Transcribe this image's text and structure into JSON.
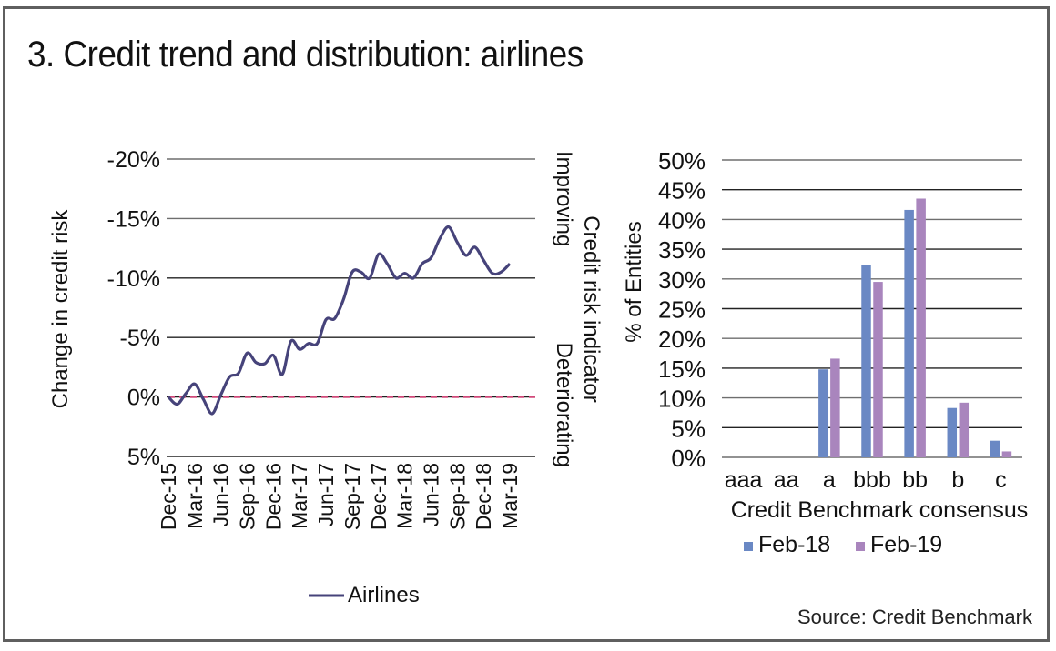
{
  "title": "3. Credit trend and distribution: airlines",
  "source": "Source: Credit Benchmark",
  "colors": {
    "airlines_line": "#46437a",
    "zero_reference": "#d14a7a",
    "feb18": "#6a88c4",
    "feb19": "#a985bd",
    "gridline": "#6e6e6e",
    "frame": "#5f5f5f"
  },
  "chart_data": [
    {
      "type": "line",
      "title": "",
      "xlabel": "",
      "ylabel": "Change in credit risk",
      "right_label": "Credit risk indicator",
      "right_annotations": {
        "top": "Improving",
        "bottom": "Deteriorating"
      },
      "y_inverted": true,
      "ylim": [
        -20,
        5
      ],
      "yticks": [
        -20,
        -15,
        -10,
        -5,
        0,
        5
      ],
      "ytick_labels": [
        "-20%",
        "-15%",
        "-10%",
        "-5%",
        "0%",
        "5%"
      ],
      "x_tick_labels": [
        "Dec-15",
        "Mar-16",
        "Jun-16",
        "Sep-16",
        "Dec-16",
        "Mar-17",
        "Jun-17",
        "Sep-17",
        "Dec-17",
        "Mar-18",
        "Jun-18",
        "Sep-18",
        "Dec-18",
        "Mar-19"
      ],
      "x_months_range": [
        0,
        39
      ],
      "grid": true,
      "legend": {
        "position": "bottom",
        "entries": [
          "Airlines"
        ]
      },
      "reference_line": {
        "y": 0,
        "style": "dashed"
      },
      "series": [
        {
          "name": "Airlines",
          "x": [
            0,
            1,
            2,
            3,
            4,
            5,
            6,
            7,
            8,
            9,
            10,
            11,
            12,
            13,
            14,
            15,
            16,
            17,
            18,
            19,
            20,
            21,
            22,
            23,
            24,
            25,
            26,
            27,
            28,
            29,
            30,
            31,
            32,
            33,
            34,
            35,
            36,
            37,
            38,
            39
          ],
          "values": [
            0.0,
            0.6,
            -0.3,
            -1.1,
            0.2,
            1.4,
            -0.2,
            -1.7,
            -2.0,
            -3.7,
            -2.9,
            -2.8,
            -3.5,
            -1.9,
            -4.7,
            -4.0,
            -4.5,
            -4.5,
            -6.5,
            -6.6,
            -8.2,
            -10.5,
            -10.5,
            -10.0,
            -12.0,
            -11.2,
            -10.0,
            -10.4,
            -10.0,
            -11.2,
            -11.7,
            -13.3,
            -14.3,
            -13.0,
            -11.9,
            -12.6,
            -11.5,
            -10.4,
            -10.5,
            -11.2
          ]
        }
      ]
    },
    {
      "type": "bar",
      "title": "",
      "xlabel": "Credit Benchmark consensus",
      "ylabel": "% of Entities",
      "ylim": [
        0,
        50
      ],
      "yticks": [
        0,
        5,
        10,
        15,
        20,
        25,
        30,
        35,
        40,
        45,
        50
      ],
      "ytick_labels": [
        "0%",
        "5%",
        "10%",
        "15%",
        "20%",
        "25%",
        "30%",
        "35%",
        "40%",
        "45%",
        "50%"
      ],
      "grid": true,
      "legend": {
        "position": "bottom",
        "entries": [
          "Feb-18",
          "Feb-19"
        ]
      },
      "categories": [
        "aaa",
        "aa",
        "a",
        "bbb",
        "bb",
        "b",
        "c"
      ],
      "series": [
        {
          "name": "Feb-18",
          "values": [
            0,
            0,
            14.8,
            32.3,
            41.6,
            8.3,
            2.8
          ]
        },
        {
          "name": "Feb-19",
          "values": [
            0,
            0,
            16.6,
            29.5,
            43.5,
            9.2,
            1.0
          ]
        }
      ]
    }
  ]
}
